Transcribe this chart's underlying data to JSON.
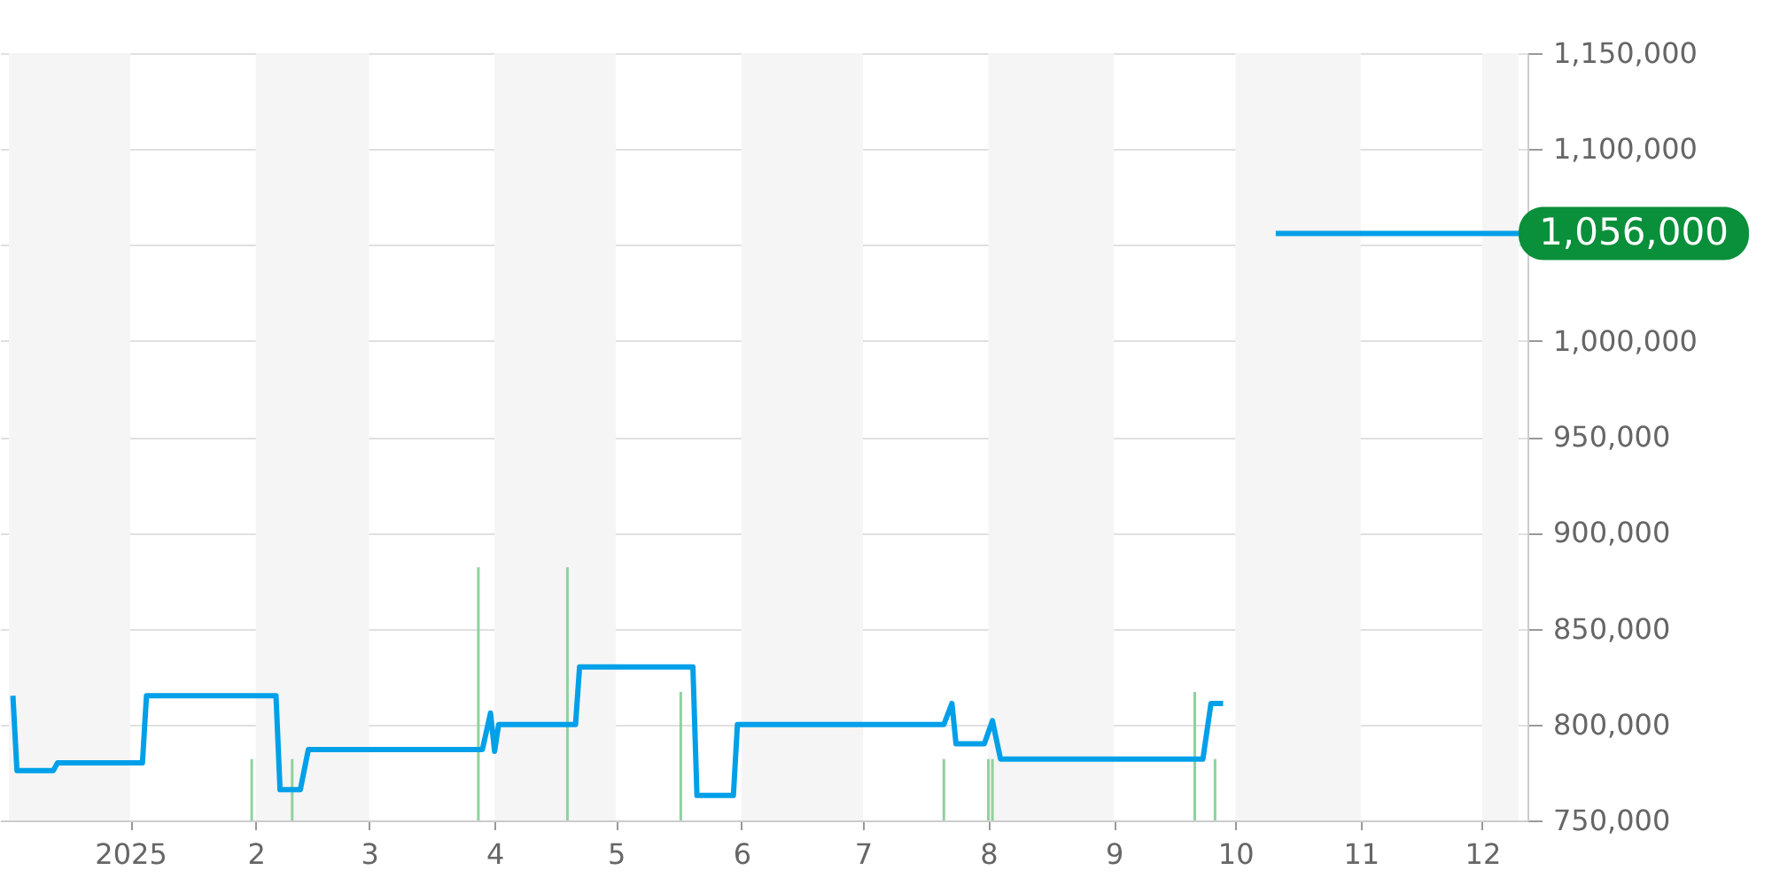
{
  "chart_data": {
    "type": "line",
    "xlim": [
      "2024-12-02",
      "2025-12-10"
    ],
    "xticks": [
      {
        "value": "2025-01-01",
        "label": "2025"
      },
      {
        "value": "2025-02-01",
        "label": "2"
      },
      {
        "value": "2025-03-01",
        "label": "3"
      },
      {
        "value": "2025-04-01",
        "label": "4"
      },
      {
        "value": "2025-05-01",
        "label": "5"
      },
      {
        "value": "2025-06-01",
        "label": "6"
      },
      {
        "value": "2025-07-01",
        "label": "7"
      },
      {
        "value": "2025-08-01",
        "label": "8"
      },
      {
        "value": "2025-09-01",
        "label": "9"
      },
      {
        "value": "2025-10-01",
        "label": "10"
      },
      {
        "value": "2025-11-01",
        "label": "11"
      },
      {
        "value": "2025-12-01",
        "label": "12"
      }
    ],
    "ylim": [
      750000,
      1150000
    ],
    "yticks": [
      {
        "value": 750000,
        "label": "750,000"
      },
      {
        "value": 800000,
        "label": "800,000"
      },
      {
        "value": 850000,
        "label": "850,000"
      },
      {
        "value": 900000,
        "label": "900,000"
      },
      {
        "value": 950000,
        "label": "950,000"
      },
      {
        "value": 1000000,
        "label": "1,000,000"
      },
      {
        "value": 1050000,
        "label": null
      },
      {
        "value": 1100000,
        "label": "1,100,000"
      },
      {
        "value": 1150000,
        "label": "1,150,000"
      }
    ],
    "grid": "y",
    "bands": [
      {
        "axis": "x",
        "from": "2024-12-02",
        "to": "2025-01-01",
        "color": "#f5f5f5"
      },
      {
        "axis": "x",
        "from": "2025-02-01",
        "to": "2025-03-01",
        "color": "#f5f5f5"
      },
      {
        "axis": "x",
        "from": "2025-04-01",
        "to": "2025-05-01",
        "color": "#f5f5f5"
      },
      {
        "axis": "x",
        "from": "2025-06-01",
        "to": "2025-07-01",
        "color": "#f5f5f5"
      },
      {
        "axis": "x",
        "from": "2025-08-01",
        "to": "2025-09-01",
        "color": "#f5f5f5"
      },
      {
        "axis": "x",
        "from": "2025-10-01",
        "to": "2025-11-01",
        "color": "#f5f5f5"
      },
      {
        "axis": "x",
        "from": "2025-12-01",
        "to": "2025-12-10",
        "color": "#f5f5f5"
      }
    ],
    "series": [
      {
        "type": "bar",
        "color": "#8fd19e",
        "x": [
          "2025-01-31",
          "2025-02-10",
          "2025-03-28",
          "2025-04-19",
          "2025-05-17",
          "2025-07-21",
          "2025-08-01",
          "2025-08-02",
          "2025-09-21",
          "2025-09-26"
        ],
        "values": [
          782000,
          782000,
          882000,
          882000,
          817000,
          782000,
          782000,
          782000,
          817000,
          782000
        ]
      },
      {
        "color": "#00a0e9",
        "x": [
          "2024-12-03",
          "2024-12-04",
          "2024-12-13",
          "2024-12-14",
          "2025-01-04",
          "2025-01-05",
          "2025-02-06",
          "2025-02-07",
          "2025-02-12",
          "2025-02-14",
          "2025-03-29",
          "2025-03-31",
          "2025-04-01",
          "2025-04-02",
          "2025-04-21",
          "2025-04-22",
          "2025-05-20",
          "2025-05-21",
          "2025-05-30",
          "2025-05-31",
          "2025-07-21",
          "2025-07-23",
          "2025-07-24",
          "2025-07-31",
          "2025-08-02",
          "2025-08-04",
          "2025-09-23",
          "2025-09-25",
          "2025-09-28"
        ],
        "values": [
          815000,
          776000,
          776000,
          780000,
          780000,
          815000,
          815000,
          766000,
          766000,
          787000,
          787000,
          806000,
          786000,
          800000,
          800000,
          830000,
          830000,
          763000,
          763000,
          800000,
          800000,
          811000,
          790000,
          790000,
          802000,
          782000,
          782000,
          811000,
          811000
        ]
      },
      {
        "color": "#00a0e9",
        "x": [
          "2025-10-11",
          "2025-12-10"
        ],
        "values": [
          1056000,
          1056000
        ],
        "value_labels": [
          null,
          "1,056,000"
        ]
      }
    ]
  }
}
